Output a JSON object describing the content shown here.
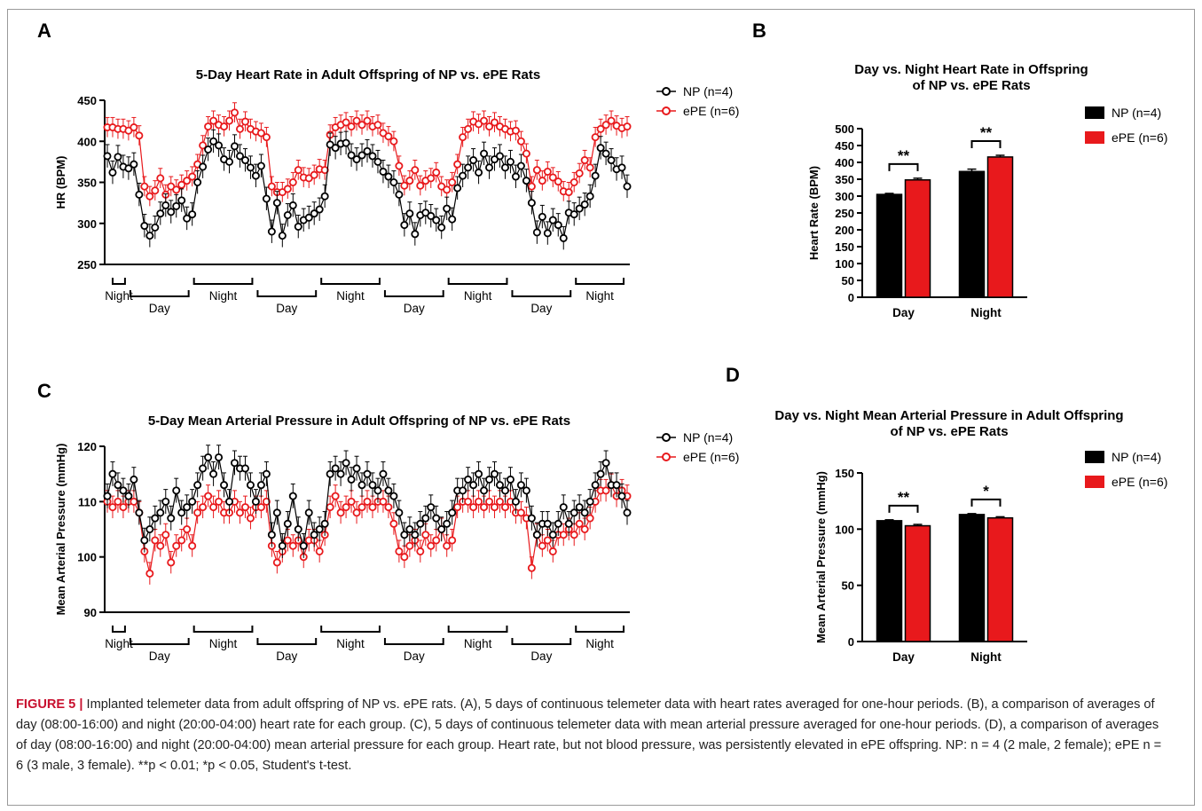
{
  "panels": {
    "A": {
      "label": "A",
      "title": "5-Day Heart Rate in Adult Offspring of NP vs. ePE Rats",
      "ylabel": "HR (BPM)"
    },
    "B": {
      "label": "B",
      "title_line1": "Day vs. Night Heart Rate in Offspring",
      "title_line2": "of NP vs. ePE Rats",
      "ylabel": "Heart Rate (BPM)"
    },
    "C": {
      "label": "C",
      "title": "5-Day Mean Arterial Pressure in Adult Offspring of NP vs. ePE Rats",
      "ylabel": "Mean Arterial Pressure (mmHg)"
    },
    "D": {
      "label": "D",
      "title_line1": "Day vs. Night Mean Arterial Pressure in Adult Offspring",
      "title_line2": "of NP vs. ePE Rats",
      "ylabel": "Mean Arterial Pressure (mmHg)"
    }
  },
  "legend": {
    "np": "NP (n=4)",
    "epe": "ePE (n=6)"
  },
  "period_labels": [
    "Night",
    "Day",
    "Night",
    "Day",
    "Night",
    "Day",
    "Night",
    "Day",
    "Night"
  ],
  "colors": {
    "np": "#000000",
    "epe": "#e8191c",
    "axis": "#000000"
  },
  "caption": {
    "figure_label": "FIGURE 5 |",
    "text": "Implanted telemeter data from adult offspring of NP vs. ePE rats. (A), 5 days of continuous telemeter data with heart rates averaged for one-hour periods. (B), a comparison of averages of day (08:00-16:00) and night (20:00-04:00) heart rate for each group. (C), 5 days of continuous telemeter data with mean arterial pressure averaged for one-hour periods. (D), a comparison of averages of day (08:00-16:00) and night (20:00-04:00) mean arterial pressure for each group. Heart rate, but not blood pressure, was persistently elevated in ePE offspring. NP: n = 4 (2 male, 2 female); ePE n = 6 (3 male, 3 female). **p < 0.01; *p < 0.05, Student's t-test."
  },
  "chart_data": [
    {
      "id": "A",
      "type": "line",
      "title": "5-Day Heart Rate in Adult Offspring of NP vs. ePE Rats",
      "xlabel": "",
      "ylabel": "HR (BPM)",
      "ylim": [
        250,
        450
      ],
      "yticks": [
        250,
        300,
        350,
        400,
        450
      ],
      "legend_position": "top-right",
      "grid": false,
      "series": [
        {
          "name": "NP (n=4)",
          "error": 14,
          "values": [
            382,
            362,
            381,
            369,
            367,
            372,
            335,
            297,
            285,
            295,
            312,
            322,
            314,
            321,
            328,
            306,
            311,
            350,
            369,
            390,
            400,
            395,
            378,
            375,
            394,
            382,
            377,
            368,
            358,
            370,
            330,
            290,
            325,
            285,
            310,
            322,
            296,
            304,
            307,
            312,
            317,
            333,
            396,
            392,
            397,
            398,
            383,
            378,
            383,
            388,
            382,
            375,
            363,
            357,
            350,
            335,
            298,
            312,
            287,
            310,
            313,
            309,
            304,
            295,
            318,
            305,
            343,
            358,
            368,
            377,
            362,
            385,
            368,
            378,
            382,
            368,
            375,
            357,
            370,
            352,
            325,
            289,
            308,
            288,
            304,
            298,
            282,
            313,
            311,
            318,
            323,
            333,
            358,
            392,
            385,
            377,
            366,
            368,
            345
          ]
        },
        {
          "name": "ePE (n=6)",
          "error": 12,
          "values": [
            417,
            417,
            415,
            415,
            413,
            417,
            407,
            345,
            333,
            340,
            355,
            335,
            345,
            341,
            347,
            352,
            357,
            372,
            395,
            418,
            425,
            420,
            418,
            425,
            435,
            415,
            424,
            415,
            412,
            410,
            405,
            345,
            338,
            338,
            342,
            350,
            365,
            356,
            355,
            359,
            366,
            365,
            408,
            417,
            420,
            423,
            418,
            425,
            420,
            425,
            418,
            420,
            410,
            406,
            400,
            370,
            346,
            352,
            365,
            346,
            352,
            355,
            362,
            345,
            341,
            350,
            372,
            405,
            415,
            424,
            421,
            425,
            418,
            423,
            418,
            415,
            412,
            413,
            400,
            385,
            345,
            365,
            352,
            363,
            356,
            351,
            339,
            338,
            350,
            361,
            377,
            368,
            405,
            415,
            420,
            425,
            419,
            416,
            418
          ]
        }
      ]
    },
    {
      "id": "B",
      "type": "bar",
      "title": "Day vs. Night Heart Rate in Offspring of NP vs. ePE Rats",
      "xlabel": "",
      "ylabel": "Heart Rate (BPM)",
      "ylim": [
        0,
        500
      ],
      "yticks": [
        0,
        50,
        100,
        150,
        200,
        250,
        300,
        350,
        400,
        450,
        500
      ],
      "categories": [
        "Day",
        "Night"
      ],
      "legend_position": "top-right",
      "series": [
        {
          "name": "NP (n=4)",
          "values": [
            305,
            373
          ],
          "errors": [
            3,
            7
          ]
        },
        {
          "name": "ePE (n=6)",
          "values": [
            348,
            416
          ],
          "errors": [
            5,
            5
          ]
        }
      ],
      "significance": [
        "**",
        "**"
      ]
    },
    {
      "id": "C",
      "type": "line",
      "title": "5-Day Mean Arterial Pressure in Adult Offspring of NP vs. ePE Rats",
      "xlabel": "",
      "ylabel": "Mean Arterial Pressure (mmHg)",
      "ylim": [
        90,
        120
      ],
      "yticks": [
        90,
        100,
        110,
        120
      ],
      "legend_position": "top-right",
      "grid": false,
      "series": [
        {
          "name": "NP (n=4)",
          "error": 2.2,
          "values": [
            111,
            115,
            113,
            112,
            111,
            114,
            108,
            103,
            105,
            107,
            108,
            110,
            107,
            112,
            108,
            109,
            110,
            113,
            116,
            118,
            115,
            118,
            113,
            110,
            117,
            116,
            116,
            113,
            110,
            113,
            115,
            104,
            108,
            102,
            106,
            111,
            105,
            102,
            108,
            104,
            105,
            106,
            115,
            116,
            115,
            117,
            114,
            116,
            113,
            115,
            113,
            112,
            115,
            112,
            111,
            108,
            104,
            105,
            104,
            106,
            107,
            109,
            107,
            105,
            106,
            108,
            112,
            112,
            114,
            113,
            115,
            112,
            114,
            115,
            113,
            112,
            114,
            110,
            113,
            112,
            107,
            104,
            106,
            106,
            104,
            106,
            109,
            106,
            108,
            109,
            108,
            110,
            113,
            115,
            117,
            113,
            113,
            111,
            108
          ]
        },
        {
          "name": "ePE (n=6)",
          "error": 2.0,
          "values": [
            110,
            109,
            110,
            109,
            110,
            110,
            108,
            101,
            97,
            103,
            102,
            104,
            99,
            102,
            103,
            105,
            102,
            108,
            109,
            111,
            109,
            110,
            108,
            108,
            110,
            108,
            109,
            107,
            109,
            109,
            110,
            102,
            99,
            101,
            103,
            102,
            103,
            100,
            103,
            103,
            101,
            104,
            109,
            111,
            108,
            109,
            110,
            108,
            109,
            110,
            109,
            110,
            110,
            109,
            106,
            101,
            100,
            102,
            103,
            101,
            104,
            102,
            103,
            105,
            102,
            103,
            109,
            110,
            110,
            109,
            110,
            109,
            110,
            109,
            110,
            109,
            110,
            108,
            108,
            107,
            98,
            104,
            102,
            103,
            101,
            104,
            104,
            105,
            104,
            106,
            105,
            107,
            110,
            112,
            112,
            113,
            111,
            112,
            111
          ]
        }
      ]
    },
    {
      "id": "D",
      "type": "bar",
      "title": "Day vs. Night Mean Arterial Pressure in Adult Offspring of NP vs. ePE Rats",
      "xlabel": "",
      "ylabel": "Mean Arterial Pressure (mmHg)",
      "ylim": [
        0,
        150
      ],
      "yticks": [
        0,
        50,
        100,
        150
      ],
      "categories": [
        "Day",
        "Night"
      ],
      "legend_position": "top-right",
      "series": [
        {
          "name": "NP (n=4)",
          "values": [
            107.5,
            113
          ],
          "errors": [
            0.8,
            0.8
          ]
        },
        {
          "name": "ePE (n=6)",
          "values": [
            103,
            110
          ],
          "errors": [
            1.2,
            1.0
          ]
        }
      ],
      "significance": [
        "**",
        "*"
      ]
    }
  ]
}
